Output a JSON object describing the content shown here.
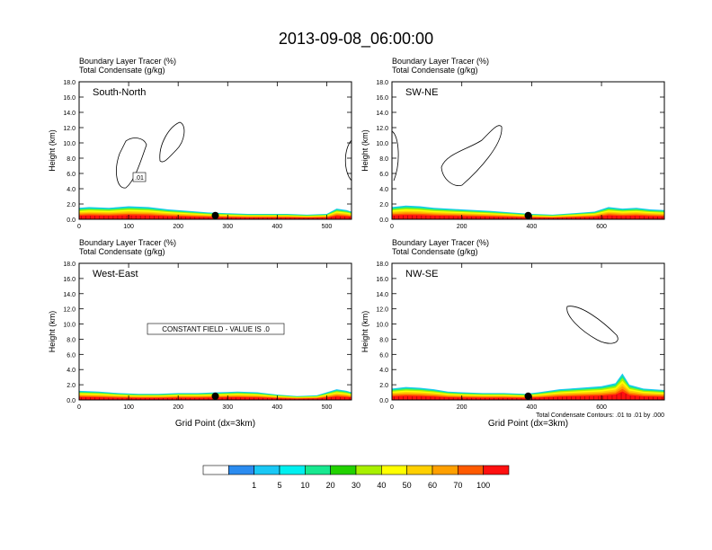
{
  "title": "2013-09-08_06:00:00",
  "field_label_1": "Boundary Layer Tracer   (%)",
  "field_label_2": "Total Condensate   (g/kg)",
  "xlabel": "Grid Point (dx=3km)",
  "ylabel": "Height (km)",
  "contour_note": "Total Condensate Contours: .01 to .01 by .000",
  "colors": {
    "fill_scale": [
      "#ffffff",
      "#2b8cf0",
      "#1ac8f5",
      "#00f0f0",
      "#18e890",
      "#22d200",
      "#a8f000",
      "#ffff00",
      "#ffd000",
      "#ffa000",
      "#ff5a00",
      "#ff1010"
    ]
  },
  "colorbar": {
    "labels": [
      "1",
      "5",
      "10",
      "20",
      "30",
      "40",
      "50",
      "60",
      "70",
      "100"
    ]
  },
  "chart_data": [
    {
      "type": "area",
      "panel": "South-North",
      "panel_label": "South-North",
      "xlim": [
        0,
        550
      ],
      "ylim": [
        0,
        18
      ],
      "xticks": [
        0,
        100,
        200,
        300,
        400,
        500
      ],
      "xtick_labels": [
        "0",
        "100",
        "200",
        "300",
        "400",
        "500"
      ],
      "yticks": [
        0,
        2,
        4,
        6,
        8,
        10,
        12,
        14,
        16,
        18
      ],
      "ytick_labels": [
        "0.0",
        "2.0",
        "4.0",
        "6.0",
        "8.0",
        "10.0",
        "12.0",
        "14.0",
        "16.0",
        "18.0"
      ],
      "boundary_layer_top_km": {
        "x": [
          0,
          20,
          60,
          100,
          140,
          180,
          220,
          260,
          300,
          340,
          380,
          420,
          460,
          500,
          520,
          540,
          550
        ],
        "y": [
          1.5,
          1.6,
          1.5,
          1.7,
          1.6,
          1.3,
          1.1,
          0.9,
          0.8,
          0.7,
          0.7,
          0.7,
          0.6,
          0.7,
          1.4,
          1.2,
          1.0
        ]
      },
      "marker_x": 275,
      "contour_label": ".01"
    },
    {
      "type": "area",
      "panel": "SW-NE",
      "panel_label": "SW-NE",
      "xlim": [
        0,
        780
      ],
      "ylim": [
        0,
        18
      ],
      "xticks": [
        0,
        200,
        400,
        600
      ],
      "xtick_labels": [
        "0",
        "200",
        "400",
        "600"
      ],
      "yticks": [
        0,
        2,
        4,
        6,
        8,
        10,
        12,
        14,
        16,
        18
      ],
      "ytick_labels": [
        "0.0",
        "2.0",
        "4.0",
        "6.0",
        "8.0",
        "10.0",
        "12.0",
        "14.0",
        "16.0",
        "18.0"
      ],
      "boundary_layer_top_km": {
        "x": [
          0,
          40,
          80,
          120,
          200,
          280,
          340,
          400,
          460,
          520,
          580,
          620,
          660,
          700,
          740,
          780
        ],
        "y": [
          1.6,
          1.8,
          1.7,
          1.5,
          1.3,
          1.1,
          0.9,
          0.7,
          0.6,
          0.8,
          1.0,
          1.6,
          1.4,
          1.5,
          1.3,
          1.2
        ]
      },
      "marker_x": 390,
      "contour_label": ""
    },
    {
      "type": "area",
      "panel": "West-East",
      "panel_label": "West-East",
      "xlim": [
        0,
        550
      ],
      "ylim": [
        0,
        18
      ],
      "xticks": [
        0,
        100,
        200,
        300,
        400,
        500
      ],
      "xtick_labels": [
        "0",
        "100",
        "200",
        "300",
        "400",
        "500"
      ],
      "yticks": [
        0,
        2,
        4,
        6,
        8,
        10,
        12,
        14,
        16,
        18
      ],
      "ytick_labels": [
        "0.0",
        "2.0",
        "4.0",
        "6.0",
        "8.0",
        "10.0",
        "12.0",
        "14.0",
        "16.0",
        "18.0"
      ],
      "boundary_layer_top_km": {
        "x": [
          0,
          40,
          80,
          120,
          160,
          200,
          240,
          280,
          320,
          360,
          400,
          440,
          480,
          520,
          540,
          550
        ],
        "y": [
          1.2,
          1.1,
          0.9,
          0.8,
          0.8,
          0.9,
          0.9,
          1.0,
          1.1,
          1.0,
          0.7,
          0.5,
          0.6,
          1.4,
          1.2,
          1.0
        ]
      },
      "marker_x": 275,
      "annotation": "CONSTANT FIELD - VALUE IS .0"
    },
    {
      "type": "area",
      "panel": "NW-SE",
      "panel_label": "NW-SE",
      "xlim": [
        0,
        780
      ],
      "ylim": [
        0,
        18
      ],
      "xticks": [
        0,
        200,
        400,
        600
      ],
      "xtick_labels": [
        "0",
        "200",
        "400",
        "600"
      ],
      "yticks": [
        0,
        2,
        4,
        6,
        8,
        10,
        12,
        14,
        16,
        18
      ],
      "ytick_labels": [
        "0.0",
        "2.0",
        "4.0",
        "6.0",
        "8.0",
        "10.0",
        "12.0",
        "14.0",
        "16.0",
        "18.0"
      ],
      "boundary_layer_top_km": {
        "x": [
          0,
          40,
          80,
          120,
          160,
          200,
          260,
          320,
          380,
          420,
          480,
          540,
          600,
          640,
          660,
          680,
          720,
          780
        ],
        "y": [
          1.5,
          1.7,
          1.6,
          1.4,
          1.1,
          1.0,
          0.9,
          0.9,
          0.8,
          1.0,
          1.4,
          1.6,
          1.8,
          2.2,
          3.5,
          2.0,
          1.5,
          1.3
        ]
      },
      "marker_x": 390,
      "contour_label": ""
    }
  ]
}
